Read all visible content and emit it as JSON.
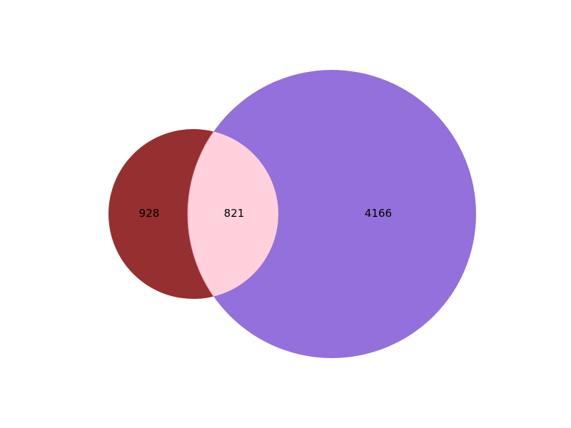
{
  "diagram": {
    "type": "venn2",
    "sets": [
      {
        "id": "A",
        "color": "#962f2f"
      },
      {
        "id": "B",
        "color": "#9370db"
      }
    ],
    "regions": {
      "only_a": {
        "value": "928"
      },
      "both": {
        "value": "821",
        "color": "#ffd1dc"
      },
      "only_b": {
        "value": "4166"
      }
    }
  }
}
